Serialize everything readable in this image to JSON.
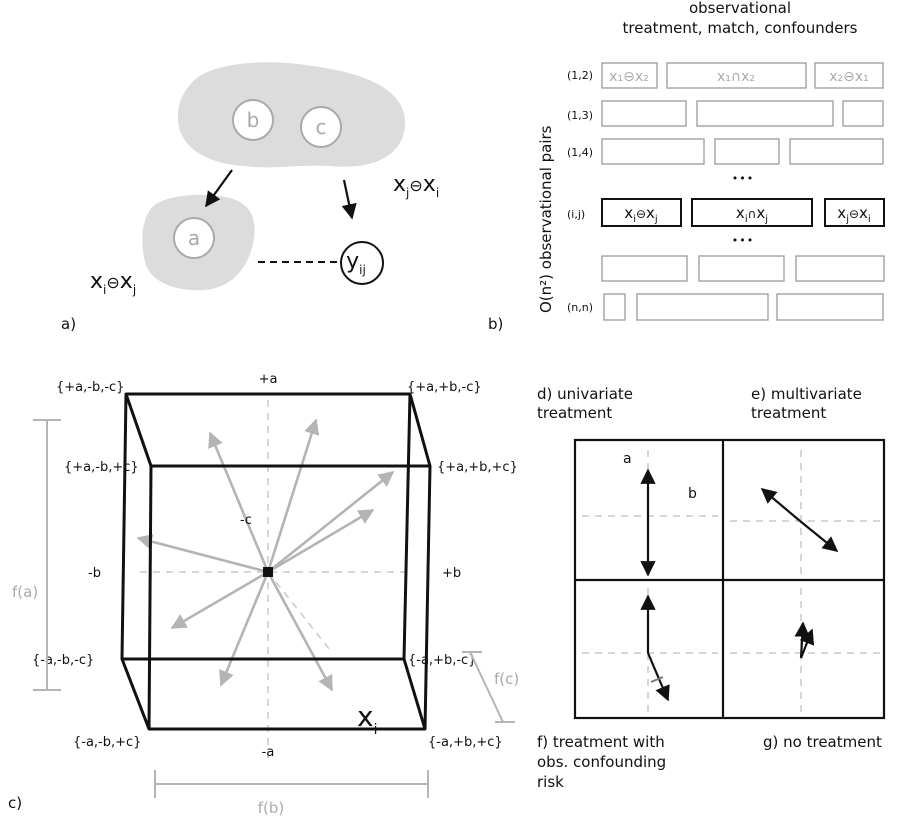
{
  "panel_a": {
    "panel_label": "a)",
    "node_b": "b",
    "node_c": "c",
    "node_a": "a",
    "node_y_base": "y",
    "node_y_sub": "ij",
    "set_ji": {
      "base": "x",
      "sub1": "j",
      "op": "⊖",
      "base2": "x",
      "sub2": "i"
    },
    "set_ij": {
      "base": "x",
      "sub1": "i",
      "op": "⊖",
      "base2": "x",
      "sub2": "j"
    }
  },
  "panel_b": {
    "panel_label": "b)",
    "header_line1": "observational",
    "header_line2": "treatment, match, confounders",
    "ylabel": "O(n²) observational pairs",
    "row_labels": [
      "(1,2)",
      "(1,3)",
      "(1,4)",
      "(i,j)",
      "(n,n)"
    ],
    "row12_cells": [
      "x₁⊖x₂",
      "x₁∩x₂",
      "x₂⊖x₁"
    ],
    "rowij_cells": [
      {
        "base": "x",
        "sub": "i",
        "op": "⊖",
        "base2": "x",
        "sub2": "j"
      },
      {
        "base": "x",
        "sub": "i",
        "op": "∩",
        "base2": "x",
        "sub2": "j"
      },
      {
        "base": "x",
        "sub": "j",
        "op": "⊖",
        "base2": "x",
        "sub2": "i"
      }
    ],
    "ellipsis": "•••"
  },
  "panel_c": {
    "panel_label": "c)",
    "corners": {
      "tl_back": "{+a,-b,-c}",
      "tl_front": "{+a,-b,+c}",
      "tr_back": "{+a,+b,-c}",
      "tr_front": "{+a,+b,+c}",
      "bl_back": "{-a,-b,-c}",
      "bl_front": "{-a,-b,+c}",
      "br_back": "{-a,+b,-c}",
      "br_front": "{-a,+b,+c}"
    },
    "plus_a": "+a",
    "minus_a": "-a",
    "minus_b": "-b",
    "plus_b": "+b",
    "minus_c": "-c",
    "fa": "f(a)",
    "fb": "f(b)",
    "fc": "f(c)",
    "xi_base": "x",
    "xi_sub": "i"
  },
  "panel_d": {
    "line1": "d) univariate",
    "line2": "treatment",
    "axis_a": "a",
    "axis_b": "b"
  },
  "panel_e": {
    "line1": "e) multivariate",
    "line2": "treatment"
  },
  "panel_f": {
    "line1": "f) treatment with",
    "line2": "obs. confounding",
    "line3": "risk"
  },
  "panel_g": {
    "line1": "g) no treatment"
  },
  "colors": {
    "grey": "#b4b4b4",
    "light_grey_fill": "#dcdcdc",
    "black": "#111111"
  }
}
